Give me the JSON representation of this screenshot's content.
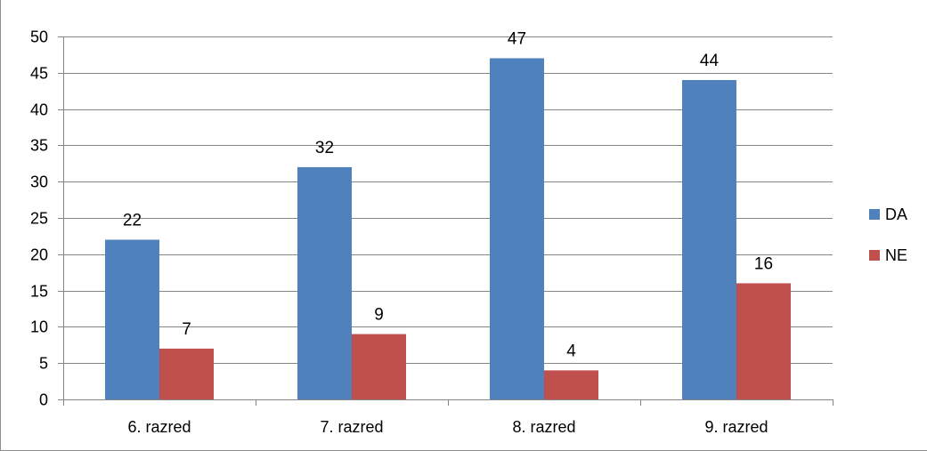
{
  "chart_data": {
    "type": "bar",
    "title": "",
    "xlabel": "",
    "ylabel": "",
    "categories": [
      "6. razred",
      "7. razred",
      "8. razred",
      "9. razred"
    ],
    "series": [
      {
        "name": "DA",
        "values": [
          22,
          32,
          47,
          44
        ],
        "color": "#4f81bd"
      },
      {
        "name": "NE",
        "values": [
          7,
          9,
          4,
          16
        ],
        "color": "#c0504d"
      }
    ],
    "ylim": [
      0,
      50
    ],
    "yticks": [
      0,
      5,
      10,
      15,
      20,
      25,
      30,
      35,
      40,
      45,
      50
    ],
    "ytick_labels": [
      "0",
      "5",
      "10",
      "15",
      "20",
      "25",
      "30",
      "35",
      "40",
      "45",
      "50"
    ],
    "data_labels": true,
    "grid": true,
    "legend_position": "right",
    "colors": {
      "gridline": "#868686",
      "axis": "#868686"
    }
  }
}
